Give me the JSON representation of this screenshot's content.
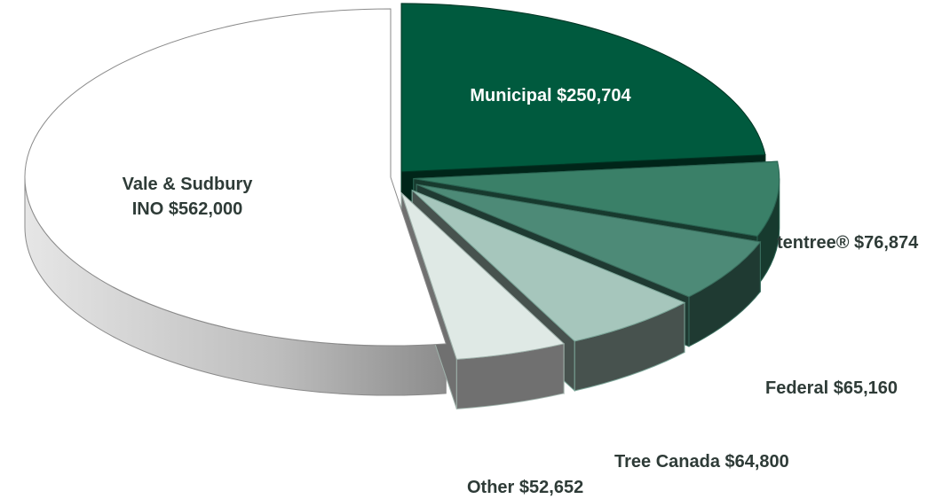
{
  "chart_data": {
    "type": "pie",
    "title": "",
    "series": [
      {
        "values": [
          250704,
          76874,
          65160,
          64800,
          52652,
          562000
        ]
      }
    ],
    "categories": [
      "Municipal",
      "tentree®",
      "Federal",
      "Tree Canada",
      "Other",
      "Vale & Sudbury INO"
    ],
    "labels": [
      {
        "text": "Municipal $250,704"
      },
      {
        "text": "tentree® $76,874"
      },
      {
        "text": "Federal $65,160"
      },
      {
        "text": "Tree Canada $64,800"
      },
      {
        "text": "Other $52,652"
      },
      {
        "text": "Vale & Sudbury",
        "text2": "INO $562,000"
      }
    ],
    "colors": {
      "Municipal": "#005a3e",
      "tentree®": "#3a8068",
      "Federal": "#4d8a77",
      "Tree Canada": "#a6c6bc",
      "Other": "#dfe9e5",
      "Vale & Sudbury INO": "#ffffff"
    },
    "style": "3d-exploded",
    "legend": "none"
  }
}
